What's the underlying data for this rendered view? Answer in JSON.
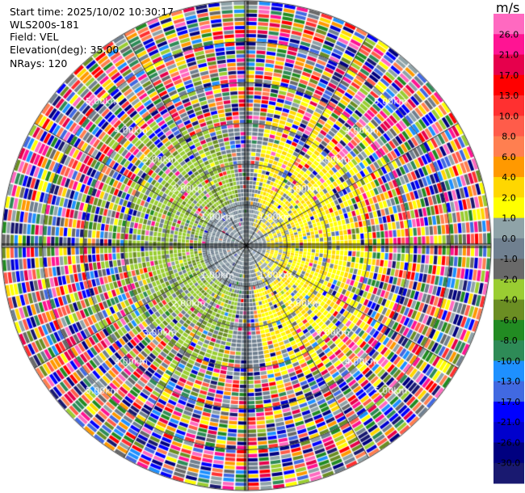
{
  "header": {
    "start_time": "Start time: 2025/10/02 10:30:17",
    "instrument": "WLS200s-181",
    "field": "Field: VEL",
    "elevation": "Elevation(deg): 35.00",
    "nrays": "NRays: 120"
  },
  "chart_data": {
    "type": "heatmap",
    "subtype": "polar-ppi",
    "field": "VEL",
    "units": "m/s",
    "n_rays": 120,
    "elevation_deg": 35.0,
    "max_range_km": 6.0,
    "range_rings": [
      {
        "label": "1.00km"
      },
      {
        "label": "2.00km"
      },
      {
        "label": "3.00km"
      },
      {
        "label": "4.00km"
      },
      {
        "label": "5.00km"
      }
    ],
    "colorbar": {
      "unit_label": "m/s",
      "ticks": [
        "26.0",
        "21.0",
        "17.0",
        "13.0",
        "10.0",
        "8.0",
        "6.0",
        "4.0",
        "2.0",
        "1.0",
        "0.0",
        "-1.0",
        "-2.0",
        "-4.0",
        "-6.0",
        "-8.0",
        "-10.0",
        "-13.0",
        "-17.0",
        "-21.0",
        "-26.0",
        "-30.0"
      ],
      "colors": [
        "#ff69c0",
        "#ff1493",
        "#e6004c",
        "#ff0000",
        "#ff3030",
        "#ff5c4a",
        "#ff7f50",
        "#ff9900",
        "#ffd700",
        "#ffff00",
        "#8fa3a8",
        "#708090",
        "#696969",
        "#9acd32",
        "#6b8e23",
        "#228b22",
        "#2e8b57",
        "#1e90ff",
        "#4169e1",
        "#0000ff",
        "#0000cd",
        "#000080",
        "#191970"
      ]
    },
    "pattern": {
      "near_field": "0.0 (gray) within ~1 km",
      "west_side": "-1.0 to -2.0 (olive/green) inward flow",
      "east_side": "1.0 to 4.0 (yellow) outward flow",
      "far_field": "noisy speckle across full scale beyond ~3 km"
    }
  }
}
